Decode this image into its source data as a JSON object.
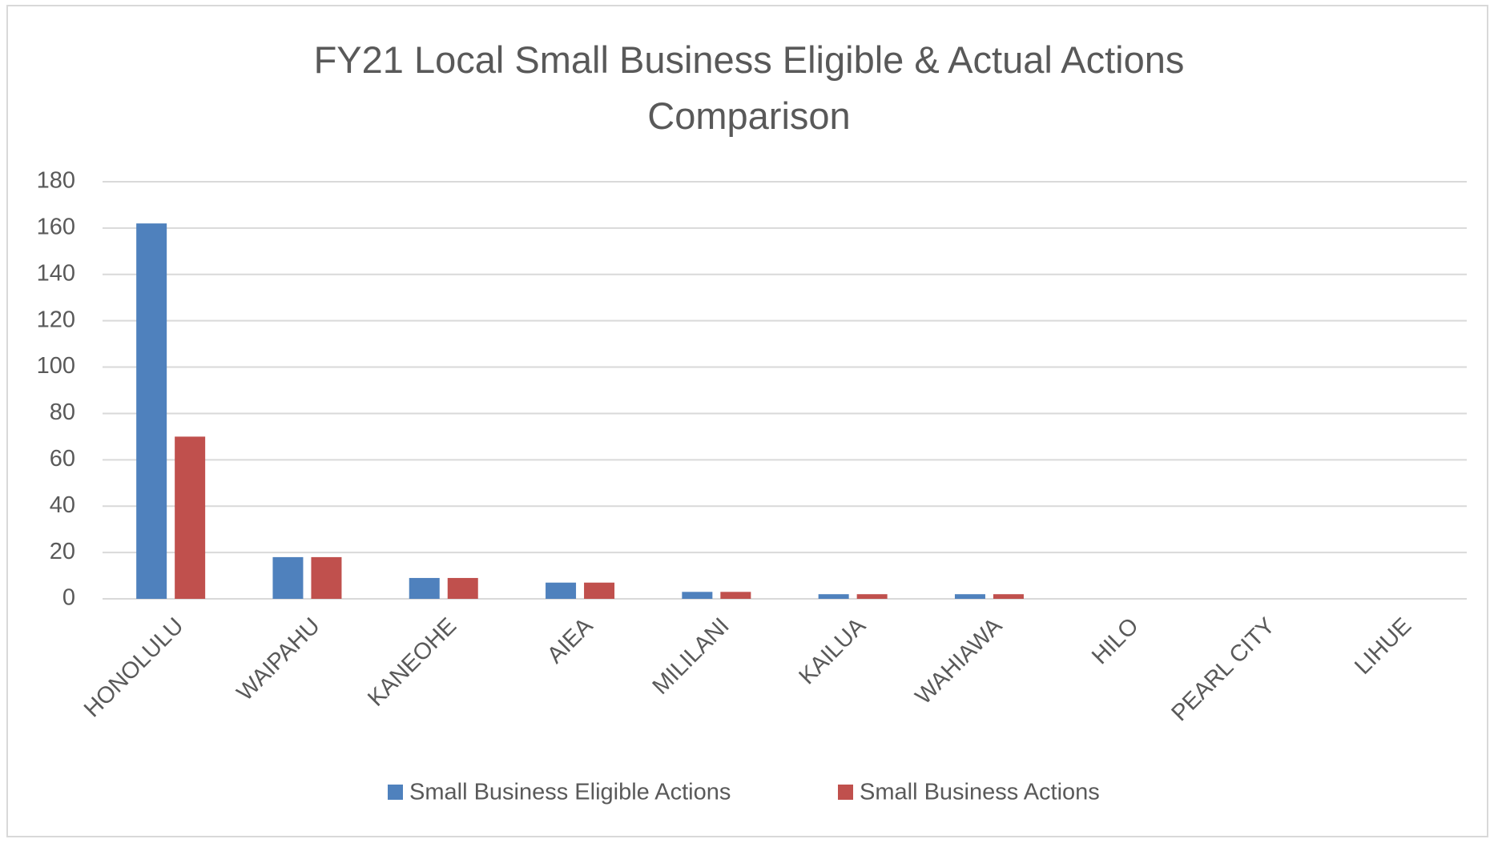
{
  "chart_data": {
    "type": "bar",
    "title": "FY21 Local Small Business Eligible & Actual Actions Comparison",
    "categories": [
      "HONOLULU",
      "WAIPAHU",
      "KANEOHE",
      "AIEA",
      "MILILANI",
      "KAILUA",
      "WAHIAWA",
      "HILO",
      "PEARL CITY",
      "LIHUE"
    ],
    "series": [
      {
        "name": "Small Business Eligible Actions",
        "color": "#4f81bd",
        "values": [
          162,
          18,
          9,
          7,
          3,
          2,
          2,
          0,
          0,
          0
        ]
      },
      {
        "name": "Small Business Actions",
        "color": "#c0504d",
        "values": [
          70,
          18,
          9,
          7,
          3,
          2,
          2,
          0,
          0,
          0
        ]
      }
    ],
    "ylim": [
      0,
      180
    ],
    "yticks": [
      0,
      20,
      40,
      60,
      80,
      100,
      120,
      140,
      160,
      180
    ],
    "grid": true,
    "legend": "bottom"
  }
}
